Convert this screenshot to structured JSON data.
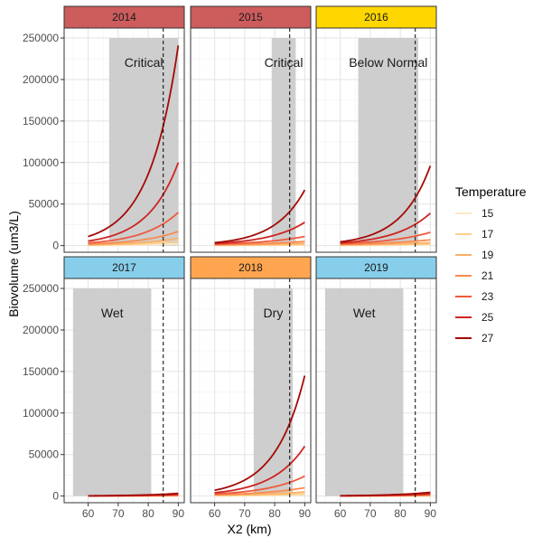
{
  "chart_data": {
    "type": "line",
    "facet_by": "year",
    "xlabel": "X2 (km)",
    "ylabel": "Biovolume (um3/L)",
    "xlim": [
      52,
      92
    ],
    "ylim": [
      -8000,
      262000
    ],
    "x_ticks": [
      "60",
      "70",
      "80",
      "90"
    ],
    "y_ticks": [
      "0",
      "50000",
      "100000",
      "150000",
      "200000",
      "250000"
    ],
    "grid": true,
    "reference_line_x": 85,
    "legend": {
      "title": "Temperature",
      "position": "right",
      "entries": [
        "15",
        "17",
        "19",
        "21",
        "23",
        "25",
        "27"
      ],
      "colors": [
        "#fde9c4",
        "#fdcf8d",
        "#fcb167",
        "#f98b4f",
        "#ee5a3d",
        "#cd2520",
        "#a40a06"
      ]
    },
    "panels": [
      {
        "year": "2014",
        "strip_color": "#cd5c5c",
        "water_year_type": "Critical",
        "shaded_x": [
          67,
          90
        ],
        "x_range": [
          60,
          90
        ],
        "series": [
          {
            "name": "15",
            "y_start": 300,
            "y_end": 2000
          },
          {
            "name": "17",
            "y_start": 600,
            "y_end": 5000
          },
          {
            "name": "19",
            "y_start": 1000,
            "y_end": 9000
          },
          {
            "name": "21",
            "y_start": 1800,
            "y_end": 17000
          },
          {
            "name": "23",
            "y_start": 3200,
            "y_end": 40000
          },
          {
            "name": "25",
            "y_start": 5500,
            "y_end": 100000
          },
          {
            "name": "27",
            "y_start": 11000,
            "y_end": 241000
          }
        ]
      },
      {
        "year": "2015",
        "strip_color": "#cd5c5c",
        "water_year_type": "Critical",
        "shaded_x": [
          79,
          87
        ],
        "x_range": [
          60,
          90
        ],
        "series": [
          {
            "name": "15",
            "y_start": 200,
            "y_end": 500
          },
          {
            "name": "17",
            "y_start": 400,
            "y_end": 1200
          },
          {
            "name": "19",
            "y_start": 700,
            "y_end": 2500
          },
          {
            "name": "21",
            "y_start": 1100,
            "y_end": 5000
          },
          {
            "name": "23",
            "y_start": 1700,
            "y_end": 11000
          },
          {
            "name": "25",
            "y_start": 2500,
            "y_end": 28000
          },
          {
            "name": "27",
            "y_start": 3500,
            "y_end": 67000
          }
        ]
      },
      {
        "year": "2016",
        "strip_color": "#ffd700",
        "water_year_type": "Below Normal",
        "shaded_x": [
          66,
          86
        ],
        "x_range": [
          60,
          90
        ],
        "series": [
          {
            "name": "15",
            "y_start": 250,
            "y_end": 800
          },
          {
            "name": "17",
            "y_start": 500,
            "y_end": 1800
          },
          {
            "name": "19",
            "y_start": 900,
            "y_end": 3500
          },
          {
            "name": "21",
            "y_start": 1400,
            "y_end": 7000
          },
          {
            "name": "23",
            "y_start": 2200,
            "y_end": 16000
          },
          {
            "name": "25",
            "y_start": 3200,
            "y_end": 39000
          },
          {
            "name": "27",
            "y_start": 4500,
            "y_end": 96000
          }
        ]
      },
      {
        "year": "2017",
        "strip_color": "#87ceeb",
        "water_year_type": "Wet",
        "shaded_x": [
          55,
          81
        ],
        "x_range": [
          60,
          90
        ],
        "series": [
          {
            "name": "15",
            "y_start": 20,
            "y_end": 150
          },
          {
            "name": "17",
            "y_start": 40,
            "y_end": 300
          },
          {
            "name": "19",
            "y_start": 60,
            "y_end": 500
          },
          {
            "name": "21",
            "y_start": 90,
            "y_end": 800
          },
          {
            "name": "23",
            "y_start": 130,
            "y_end": 1300
          },
          {
            "name": "25",
            "y_start": 200,
            "y_end": 2200
          },
          {
            "name": "27",
            "y_start": 300,
            "y_end": 3200
          }
        ]
      },
      {
        "year": "2018",
        "strip_color": "#ffa54f",
        "water_year_type": "Dry",
        "shaded_x": [
          73,
          86
        ],
        "x_range": [
          60,
          90
        ],
        "series": [
          {
            "name": "15",
            "y_start": 300,
            "y_end": 1200
          },
          {
            "name": "17",
            "y_start": 600,
            "y_end": 2600
          },
          {
            "name": "19",
            "y_start": 1000,
            "y_end": 5000
          },
          {
            "name": "21",
            "y_start": 1600,
            "y_end": 10000
          },
          {
            "name": "23",
            "y_start": 2500,
            "y_end": 24000
          },
          {
            "name": "25",
            "y_start": 4000,
            "y_end": 60000
          },
          {
            "name": "27",
            "y_start": 7000,
            "y_end": 145000
          }
        ]
      },
      {
        "year": "2019",
        "strip_color": "#87ceeb",
        "water_year_type": "Wet",
        "shaded_x": [
          55,
          81
        ],
        "x_range": [
          60,
          90
        ],
        "series": [
          {
            "name": "15",
            "y_start": 30,
            "y_end": 200
          },
          {
            "name": "17",
            "y_start": 50,
            "y_end": 400
          },
          {
            "name": "19",
            "y_start": 80,
            "y_end": 700
          },
          {
            "name": "21",
            "y_start": 120,
            "y_end": 1100
          },
          {
            "name": "23",
            "y_start": 180,
            "y_end": 1800
          },
          {
            "name": "25",
            "y_start": 280,
            "y_end": 3000
          },
          {
            "name": "27",
            "y_start": 400,
            "y_end": 4500
          }
        ]
      }
    ]
  }
}
